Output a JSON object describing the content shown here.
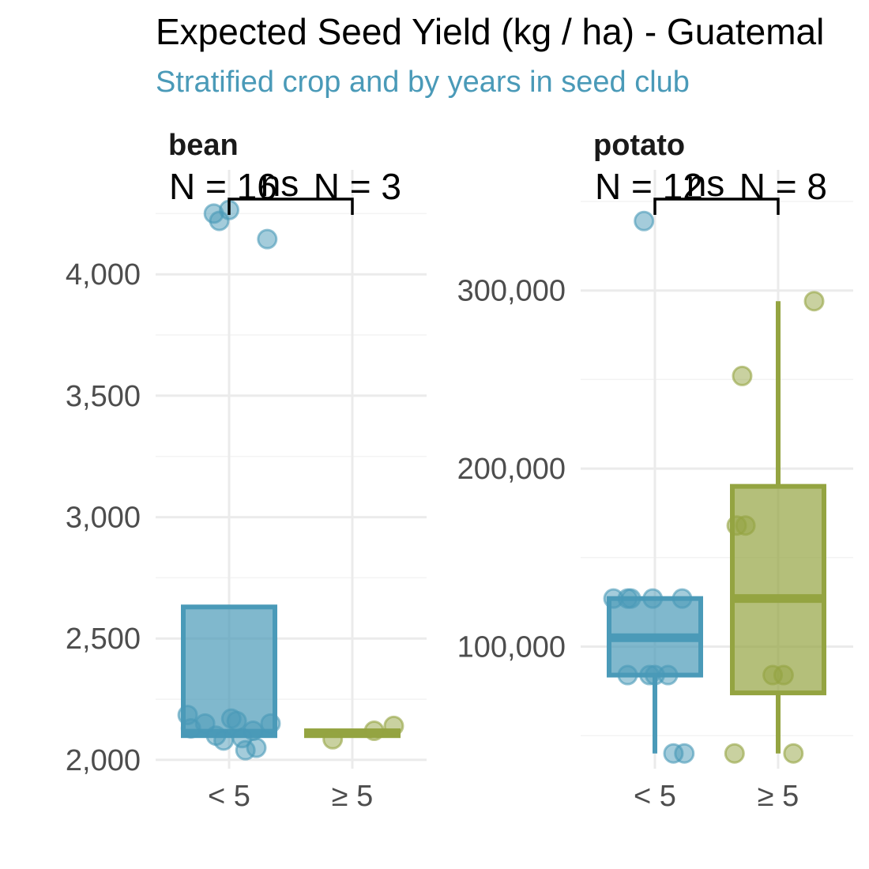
{
  "colors": {
    "under5": "#4a9ab8",
    "over5": "#94a441",
    "subtitle": "#4a9ab8"
  },
  "chart_data": {
    "type": "box",
    "title": "Expected Seed Yield (kg / ha) - Guatemal",
    "subtitle": "Stratified crop and by years in seed club",
    "categories": [
      "< 5",
      "≥ 5"
    ],
    "panels": [
      {
        "facet": "bean",
        "ylim": [
          1990,
          4300
        ],
        "yticks": [
          2000,
          2500,
          3000,
          3500,
          4000
        ],
        "ytick_labels": [
          "2,000",
          "2,500",
          "3,000",
          "3,500",
          "4,000"
        ],
        "yminor": [
          2250,
          2750,
          3250,
          3750,
          4250
        ],
        "n_labels": [
          "N = 16",
          "N = 3"
        ],
        "sig_label": "ns",
        "groups": [
          {
            "category": "< 5",
            "box": {
              "q1": 2100,
              "median": 2110,
              "q3": 2630,
              "whisker_low": 2100,
              "whisker_high": 2630
            },
            "points": [
              [
                -0.38,
                2185
              ],
              [
                -0.35,
                2130
              ],
              [
                -0.22,
                2150
              ],
              [
                -0.12,
                2100
              ],
              [
                -0.05,
                2080
              ],
              [
                0.02,
                2170
              ],
              [
                0.07,
                2160
              ],
              [
                0.12,
                2090
              ],
              [
                0.15,
                2040
              ],
              [
                0.22,
                2120
              ],
              [
                0.25,
                2050
              ],
              [
                0.38,
                2150
              ],
              [
                -0.14,
                4250
              ],
              [
                -0.09,
                4220
              ],
              [
                0.0,
                4265
              ],
              [
                0.35,
                4145
              ]
            ]
          },
          {
            "category": "≥ 5",
            "box": {
              "q1": 2100,
              "median": 2110,
              "q3": 2120,
              "whisker_low": 2100,
              "whisker_high": 2120
            },
            "points": [
              [
                -0.18,
                2085
              ],
              [
                0.2,
                2120
              ],
              [
                0.38,
                2140
              ]
            ]
          }
        ]
      },
      {
        "facet": "potato",
        "ylim": [
          35000,
          350000
        ],
        "yticks": [
          100000,
          200000,
          300000
        ],
        "ytick_labels": [
          "100,000",
          "200,000",
          "300,000"
        ],
        "yminor": [
          50000,
          150000,
          250000,
          350000
        ],
        "n_labels": [
          "N = 12",
          "N = 8"
        ],
        "sig_label": "ns",
        "groups": [
          {
            "category": "< 5",
            "box": {
              "q1": 84000,
              "median": 105000,
              "q3": 127000,
              "whisker_low": 40000,
              "whisker_high": 127000
            },
            "points": [
              [
                -0.38,
                127000
              ],
              [
                -0.25,
                127000
              ],
              [
                -0.22,
                127000
              ],
              [
                -0.02,
                127000
              ],
              [
                0.25,
                127000
              ],
              [
                -0.25,
                84000
              ],
              [
                -0.05,
                84000
              ],
              [
                0.0,
                84000
              ],
              [
                0.12,
                84000
              ],
              [
                0.17,
                40000
              ],
              [
                0.27,
                40000
              ],
              [
                -0.1,
                339000
              ]
            ]
          },
          {
            "category": "≥ 5",
            "box": {
              "q1": 74000,
              "median": 127000,
              "q3": 190000,
              "whisker_low": 40000,
              "whisker_high": 294000
            },
            "points": [
              [
                0.33,
                294000
              ],
              [
                -0.33,
                252000
              ],
              [
                -0.38,
                168000
              ],
              [
                -0.3,
                168000
              ],
              [
                -0.05,
                84000
              ],
              [
                0.05,
                84000
              ],
              [
                -0.4,
                40000
              ],
              [
                0.14,
                40000
              ]
            ]
          }
        ]
      }
    ]
  }
}
